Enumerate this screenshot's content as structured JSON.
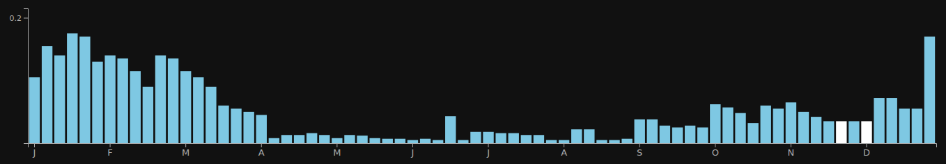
{
  "chart_data": {
    "type": "bar",
    "categories": [
      "J",
      null,
      null,
      null,
      null,
      null,
      "F",
      null,
      null,
      null,
      null,
      null,
      "M",
      null,
      null,
      null,
      null,
      null,
      "A",
      null,
      null,
      null,
      null,
      null,
      "M",
      null,
      null,
      null,
      null,
      null,
      "J",
      null,
      null,
      null,
      null,
      null,
      "J",
      null,
      null,
      null,
      null,
      null,
      "A",
      null,
      null,
      null,
      null,
      null,
      "S",
      null,
      null,
      null,
      null,
      null,
      "O",
      null,
      null,
      null,
      null,
      null,
      "N",
      null,
      null,
      null,
      null,
      null,
      "D",
      null,
      null,
      null,
      null,
      null
    ],
    "values": [
      0.105,
      0.155,
      0.14,
      0.175,
      0.17,
      0.13,
      0.14,
      0.135,
      0.115,
      0.09,
      0.14,
      0.135,
      0.115,
      0.105,
      0.09,
      0.06,
      0.055,
      0.05,
      0.045,
      0.008,
      0.013,
      0.013,
      0.016,
      0.013,
      0.008,
      0.013,
      0.012,
      0.008,
      0.007,
      0.007,
      0.005,
      0.007,
      0.005,
      0.043,
      0.005,
      0.018,
      0.018,
      0.016,
      0.016,
      0.013,
      0.013,
      0.005,
      0.005,
      0.022,
      0.022,
      0.005,
      0.005,
      0.007,
      0.038,
      0.038,
      0.028,
      0.025,
      0.028,
      0.025,
      0.062,
      0.057,
      0.048,
      0.032,
      0.06,
      0.055,
      0.065,
      0.05,
      0.042,
      0.035,
      0.035,
      0.035,
      0.035,
      0.072,
      0.072,
      0.055,
      0.055,
      0.17
    ],
    "colors": [
      "#7EC8E3",
      "#7EC8E3",
      "#7EC8E3",
      "#7EC8E3",
      "#7EC8E3",
      "#7EC8E3",
      "#7EC8E3",
      "#7EC8E3",
      "#7EC8E3",
      "#7EC8E3",
      "#7EC8E3",
      "#7EC8E3",
      "#7EC8E3",
      "#7EC8E3",
      "#7EC8E3",
      "#7EC8E3",
      "#7EC8E3",
      "#7EC8E3",
      "#7EC8E3",
      "#7EC8E3",
      "#7EC8E3",
      "#7EC8E3",
      "#7EC8E3",
      "#7EC8E3",
      "#7EC8E3",
      "#7EC8E3",
      "#7EC8E3",
      "#7EC8E3",
      "#7EC8E3",
      "#7EC8E3",
      "#7EC8E3",
      "#7EC8E3",
      "#7EC8E3",
      "#7EC8E3",
      "#7EC8E3",
      "#7EC8E3",
      "#7EC8E3",
      "#7EC8E3",
      "#7EC8E3",
      "#7EC8E3",
      "#7EC8E3",
      "#7EC8E3",
      "#7EC8E3",
      "#7EC8E3",
      "#7EC8E3",
      "#7EC8E3",
      "#7EC8E3",
      "#7EC8E3",
      "#7EC8E3",
      "#7EC8E3",
      "#7EC8E3",
      "#7EC8E3",
      "#7EC8E3",
      "#7EC8E3",
      "#7EC8E3",
      "#7EC8E3",
      "#7EC8E3",
      "#7EC8E3",
      "#7EC8E3",
      "#7EC8E3",
      "#7EC8E3",
      "#7EC8E3",
      "#7EC8E3",
      "#7EC8E3",
      "#FFFFFF",
      "#7EC8E3",
      "#FFFFFF",
      "#7EC8E3",
      "#7EC8E3",
      "#7EC8E3",
      "#7EC8E3",
      "#7EC8E3"
    ],
    "ylim": [
      0,
      0.215
    ],
    "yticks": [
      0.2
    ],
    "grid": false
  }
}
